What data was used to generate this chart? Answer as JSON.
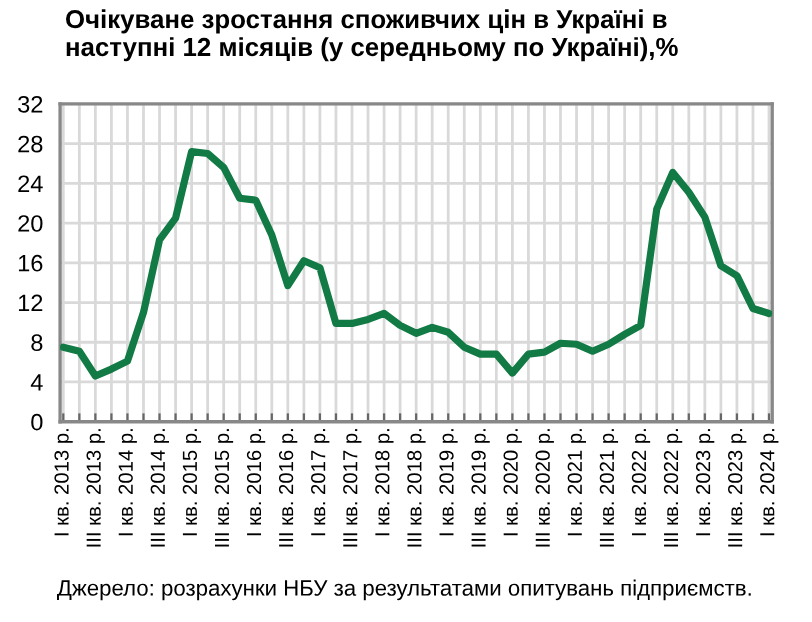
{
  "chart_data": {
    "type": "line",
    "title": "Очікуване зростання споживчих цін в Україні в\nнаступні 12 місяців (у середньому по Україні),%",
    "categories": [
      "I кв. 2013 р.",
      null,
      "III кв. 2013 р.",
      null,
      "I кв. 2014 р.",
      null,
      "III кв. 2014 р.",
      null,
      "I кв. 2015 р.",
      null,
      "III кв. 2015 р.",
      null,
      "I кв. 2016 р.",
      null,
      "III кв. 2016 р.",
      null,
      "I кв. 2017 р.",
      null,
      "III кв. 2017 р.",
      null,
      "I кв. 2018 р.",
      null,
      "III кв. 2018 р.",
      null,
      "I кв. 2019 р.",
      null,
      "III кв. 2019 р.",
      null,
      "I кв. 2020 р.",
      null,
      "III кв. 2020 р.",
      null,
      "I кв. 2021 р.",
      null,
      "III кв. 2021 р.",
      null,
      "I кв. 2022 р.",
      null,
      "III кв. 2022 р.",
      null,
      "I кв. 2023 р.",
      null,
      "III кв. 2023 р.",
      null,
      "I кв. 2024 р."
    ],
    "series": [
      {
        "color": "#127a45",
        "values": [
          7.5,
          7.1,
          4.6,
          5.3,
          6.1,
          11.0,
          18.3,
          20.5,
          27.2,
          27.0,
          25.6,
          22.5,
          22.3,
          18.8,
          13.7,
          16.2,
          15.5,
          9.9,
          9.9,
          10.3,
          10.9,
          9.7,
          8.9,
          9.5,
          9.0,
          7.5,
          6.8,
          6.8,
          4.9,
          6.8,
          7.0,
          7.9,
          7.8,
          7.1,
          7.8,
          8.8,
          9.7,
          21.4,
          25.1,
          23.1,
          20.6,
          15.7,
          14.7,
          11.4,
          10.9
        ]
      }
    ],
    "ylim": [
      0,
      32
    ],
    "yticks": [
      0,
      4,
      8,
      12,
      16,
      20,
      24,
      28,
      32
    ],
    "grid": true,
    "legend": false,
    "annotations": [
      "Джерело: розрахунки НБУ за результатами опитувань підприємств."
    ]
  }
}
